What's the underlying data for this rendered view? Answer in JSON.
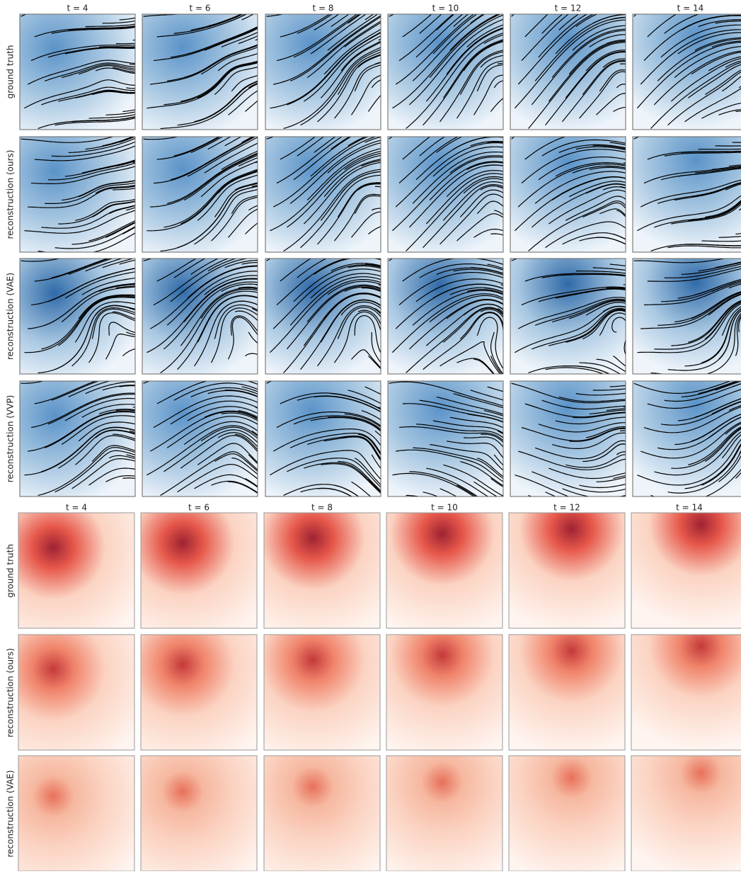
{
  "velocity": {
    "column_titles": [
      "t = 4",
      "t = 6",
      "t = 8",
      "t = 10",
      "t = 12",
      "t = 14"
    ],
    "row_labels": [
      "ground truth",
      "reconstruction (ours)",
      "reconstruction (VAE)",
      "reconstruction (VVP)"
    ]
  },
  "density": {
    "column_titles": [
      "t = 4",
      "t = 6",
      "t = 8",
      "t = 10",
      "t = 12",
      "t = 14"
    ],
    "row_labels": [
      "ground truth",
      "reconstruction (ours)",
      "reconstruction (VAE)"
    ]
  }
}
